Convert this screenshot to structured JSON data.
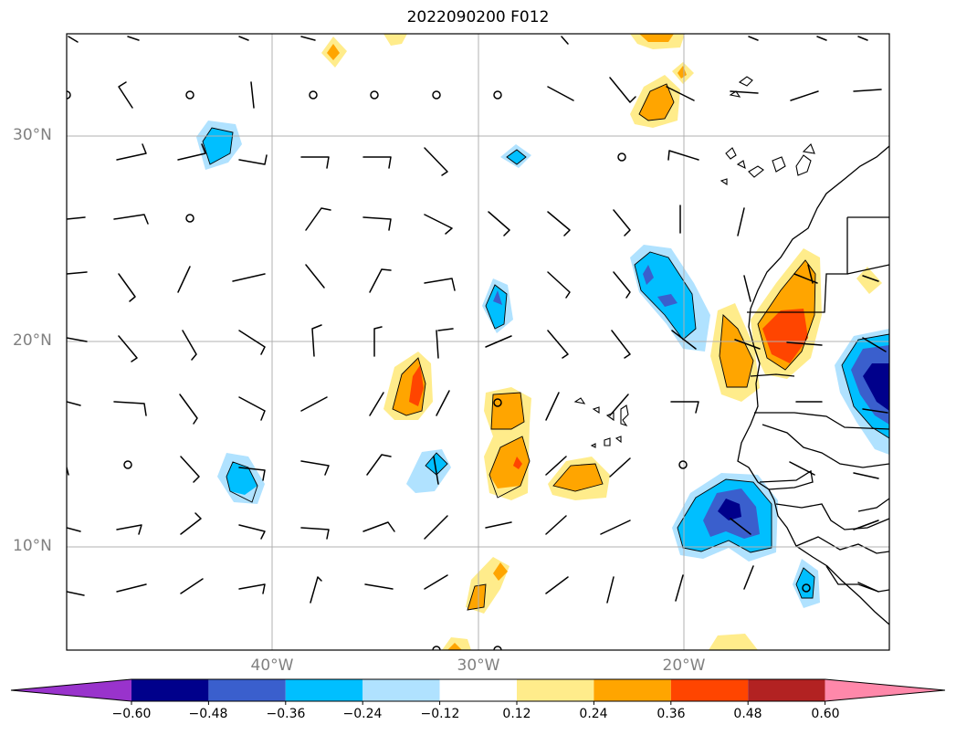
{
  "title": "2022090200 F012",
  "lat_labels": [
    "30°N",
    "20°N",
    "10°N"
  ],
  "lon_labels": [
    "40°W",
    "30°W",
    "20°W"
  ],
  "colorbar": {
    "ticks": [
      "−0.60",
      "−0.48",
      "−0.36",
      "−0.24",
      "−0.12",
      "0.12",
      "0.24",
      "0.36",
      "0.48",
      "0.60"
    ],
    "colors": [
      "#9933cc",
      "#00008b",
      "#3a5fcd",
      "#00bfff",
      "#b0e2ff",
      "#ffffff",
      "#ffec8b",
      "#ffa500",
      "#ff4500",
      "#b22222",
      "#ff88aa"
    ]
  }
}
